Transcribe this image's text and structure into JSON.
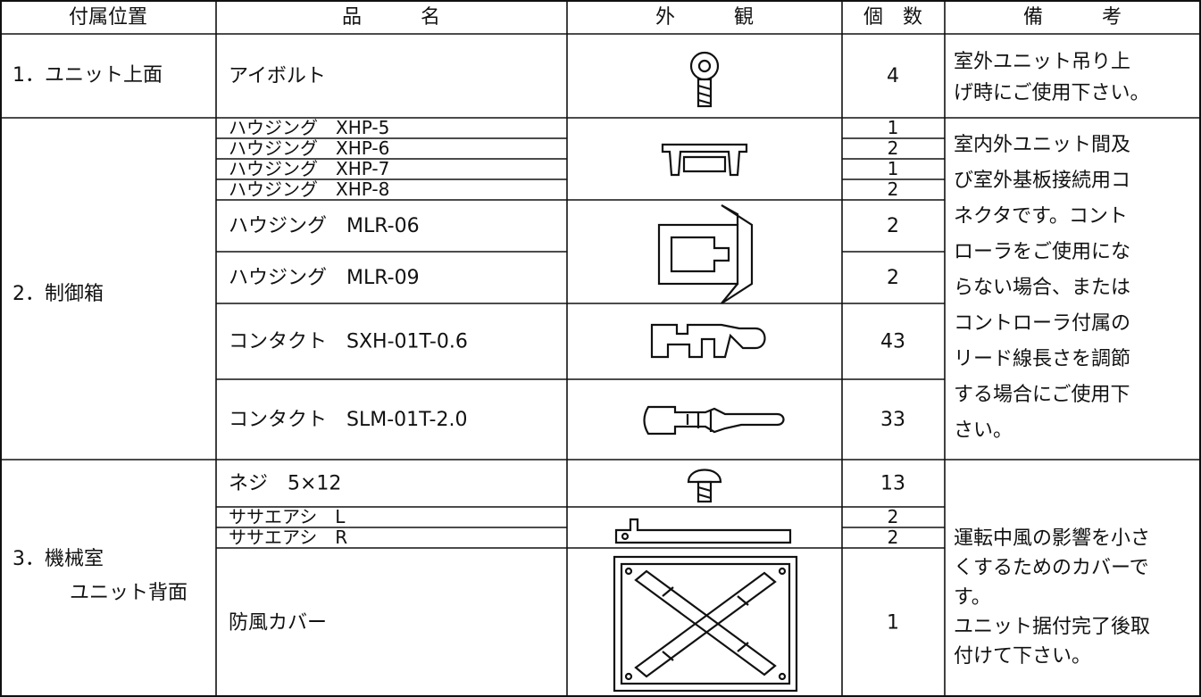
{
  "table": {
    "header": [
      "付属位置",
      "品　　　名",
      "外　　　観",
      "個　数",
      "備　　　考"
    ],
    "sections": [
      {
        "location_lines": [
          "1．ユニット上面"
        ],
        "items": [
          {
            "name": "アイボルト",
            "quantity": 4
          }
        ],
        "note_lines": [
          "室外ユニット吊り上",
          "げ時にご使用下さい。"
        ]
      },
      {
        "location_lines": [
          "2．制御箱"
        ],
        "items": [
          {
            "name": "ハウジング　XHP-5",
            "quantity": 1
          },
          {
            "name": "ハウジング　XHP-6",
            "quantity": 2
          },
          {
            "name": "ハウジング　XHP-7",
            "quantity": 1
          },
          {
            "name": "ハウジング　XHP-8",
            "quantity": 2
          },
          {
            "name": "ハウジング　MLR-06",
            "quantity": 2
          },
          {
            "name": "ハウジング　MLR-09",
            "quantity": 2
          },
          {
            "name": "コンタクト　SXH-01T-0.6",
            "quantity": 43
          },
          {
            "name": "コンタクト　SLM-01T-2.0",
            "quantity": 33
          }
        ],
        "note_lines": [
          "室内外ユニット間及",
          "び室外基板接続用コ",
          "ネクタです。コント",
          "ローラをご使用にな",
          "らない場合、または",
          "コントローラ付属の",
          "リード線長さを調節",
          "する場合にご使用下",
          "さい。"
        ]
      },
      {
        "location_lines": [
          "3．機械室",
          "ユニット背面"
        ],
        "items": [
          {
            "name": "ネジ　5×12",
            "quantity": 13
          },
          {
            "name": "ササエアシ　L",
            "quantity": 2
          },
          {
            "name": "ササエアシ　R",
            "quantity": 2
          },
          {
            "name": "防風カバー",
            "quantity": 1
          }
        ],
        "note_lines": [
          "運転中風の影響を小さ",
          "くするためのカバーで",
          "す。",
          "ユニット据付完了後取",
          "付けて下さい。"
        ]
      }
    ]
  }
}
